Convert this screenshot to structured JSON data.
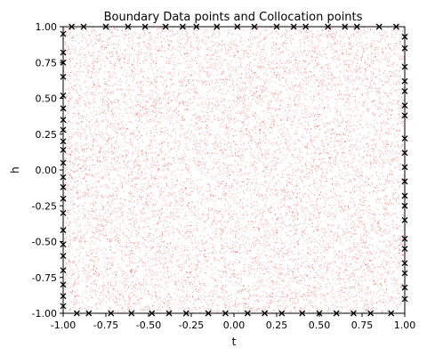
{
  "chart_data": {
    "type": "scatter",
    "title": "Boundary Data points and Collocation points",
    "xlabel": "t",
    "ylabel": "h",
    "xlim": [
      -1.0,
      1.0
    ],
    "ylim": [
      -1.0,
      1.0
    ],
    "grid": false,
    "x_ticks": [
      "-1.00",
      "-0.75",
      "-0.50",
      "-0.25",
      "0.00",
      "0.25",
      "0.50",
      "0.75",
      "1.00"
    ],
    "y_ticks": [
      "-1.00",
      "-0.75",
      "-0.50",
      "-0.25",
      "0.00",
      "0.25",
      "0.50",
      "0.75",
      "1.00"
    ],
    "x_tick_values": [
      -1.0,
      -0.75,
      -0.5,
      -0.25,
      0.0,
      0.25,
      0.5,
      0.75,
      1.0
    ],
    "y_tick_values": [
      -1.0,
      -0.75,
      -0.5,
      -0.25,
      0.0,
      0.25,
      0.5,
      0.75,
      1.0
    ],
    "series": [
      {
        "marker": "dot",
        "color": "#ff0000",
        "distribution": "uniform random over the domain",
        "x_range": [
          -1.0,
          1.0
        ],
        "y_range": [
          -1.0,
          1.0
        ],
        "approx_count": 10000
      },
      {
        "marker": "x",
        "color": "#000000",
        "points": [
          [
            -1.0,
            0.95
          ],
          [
            -1.0,
            0.82
          ],
          [
            -1.0,
            0.75
          ],
          [
            -1.0,
            0.65
          ],
          [
            -1.0,
            0.52
          ],
          [
            -1.0,
            0.43
          ],
          [
            -1.0,
            0.35
          ],
          [
            -1.0,
            0.28
          ],
          [
            -1.0,
            0.2
          ],
          [
            -1.0,
            0.14
          ],
          [
            -1.0,
            0.05
          ],
          [
            -1.0,
            -0.05
          ],
          [
            -1.0,
            -0.12
          ],
          [
            -1.0,
            -0.2
          ],
          [
            -1.0,
            -0.3
          ],
          [
            -1.0,
            -0.42
          ],
          [
            -1.0,
            -0.52
          ],
          [
            -1.0,
            -0.6
          ],
          [
            -1.0,
            -0.7
          ],
          [
            -1.0,
            -0.8
          ],
          [
            -1.0,
            -0.88
          ],
          [
            -1.0,
            -0.95
          ],
          [
            1.0,
            0.93
          ],
          [
            1.0,
            0.85
          ],
          [
            1.0,
            0.72
          ],
          [
            1.0,
            0.62
          ],
          [
            1.0,
            0.55
          ],
          [
            1.0,
            0.45
          ],
          [
            1.0,
            0.38
          ],
          [
            1.0,
            0.22
          ],
          [
            1.0,
            0.12
          ],
          [
            1.0,
            0.02
          ],
          [
            1.0,
            -0.08
          ],
          [
            1.0,
            -0.18
          ],
          [
            1.0,
            -0.25
          ],
          [
            1.0,
            -0.35
          ],
          [
            1.0,
            -0.48
          ],
          [
            1.0,
            -0.55
          ],
          [
            1.0,
            -0.65
          ],
          [
            1.0,
            -0.72
          ],
          [
            1.0,
            -0.82
          ],
          [
            1.0,
            -0.9
          ],
          [
            -0.95,
            1.0
          ],
          [
            -0.88,
            1.0
          ],
          [
            -0.75,
            1.0
          ],
          [
            -0.62,
            1.0
          ],
          [
            -0.52,
            1.0
          ],
          [
            -0.4,
            1.0
          ],
          [
            -0.3,
            1.0
          ],
          [
            -0.22,
            1.0
          ],
          [
            -0.1,
            1.0
          ],
          [
            0.02,
            1.0
          ],
          [
            0.12,
            1.0
          ],
          [
            0.25,
            1.0
          ],
          [
            0.35,
            1.0
          ],
          [
            0.42,
            1.0
          ],
          [
            0.55,
            1.0
          ],
          [
            0.65,
            1.0
          ],
          [
            0.72,
            1.0
          ],
          [
            0.85,
            1.0
          ],
          [
            0.95,
            1.0
          ],
          [
            -0.92,
            -1.0
          ],
          [
            -0.85,
            -1.0
          ],
          [
            -0.72,
            -1.0
          ],
          [
            -0.6,
            -1.0
          ],
          [
            -0.48,
            -1.0
          ],
          [
            -0.38,
            -1.0
          ],
          [
            -0.28,
            -1.0
          ],
          [
            -0.15,
            -1.0
          ],
          [
            -0.05,
            -1.0
          ],
          [
            0.08,
            -1.0
          ],
          [
            0.18,
            -1.0
          ],
          [
            0.28,
            -1.0
          ],
          [
            0.4,
            -1.0
          ],
          [
            0.5,
            -1.0
          ],
          [
            0.6,
            -1.0
          ],
          [
            0.7,
            -1.0
          ],
          [
            0.8,
            -1.0
          ],
          [
            0.92,
            -1.0
          ]
        ]
      }
    ]
  }
}
